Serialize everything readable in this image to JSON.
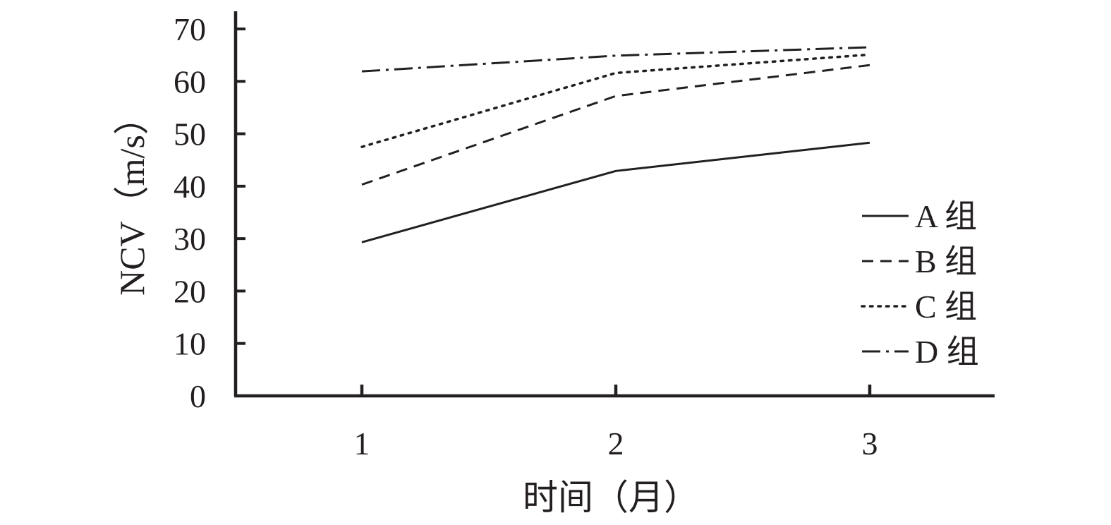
{
  "chart_data": {
    "type": "line",
    "title": "",
    "xlabel": "时间（月）",
    "ylabel": "NCV（m/s）",
    "x": [
      1,
      2,
      3
    ],
    "x_tick_labels": [
      "1",
      "2",
      "3"
    ],
    "ylim": [
      0,
      70
    ],
    "y_ticks": [
      0,
      10,
      20,
      30,
      40,
      50,
      60,
      70
    ],
    "y_tick_labels": [
      "0",
      "10",
      "20",
      "30",
      "40",
      "50",
      "60",
      "70"
    ],
    "grid": false,
    "legend_position": "right",
    "series": [
      {
        "name": "A 组",
        "values": [
          29.3,
          42.9,
          48.3
        ],
        "line_style": "solid",
        "color": "#231f20"
      },
      {
        "name": "B 组",
        "values": [
          40.3,
          57.2,
          63.1
        ],
        "line_style": "dashed",
        "color": "#231f20"
      },
      {
        "name": "C 组",
        "values": [
          47.5,
          61.6,
          65.1
        ],
        "line_style": "dotted",
        "color": "#231f20"
      },
      {
        "name": "D 组",
        "values": [
          61.9,
          64.9,
          66.5
        ],
        "line_style": "dash-dot",
        "color": "#231f20"
      }
    ]
  }
}
